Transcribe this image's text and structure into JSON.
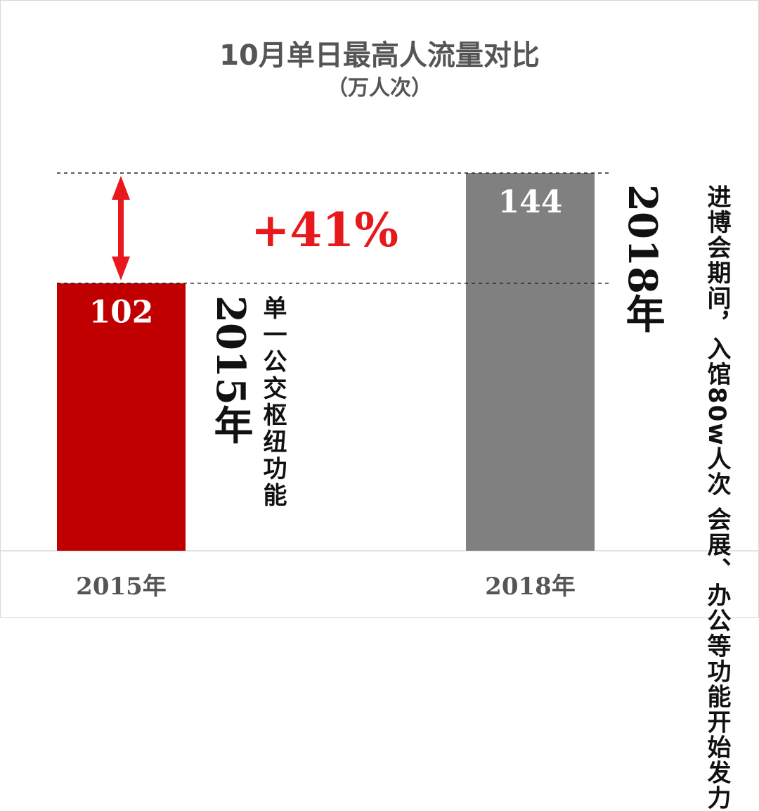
{
  "chart_data": {
    "type": "bar",
    "title": "10月单日最高人流量对比",
    "subtitle": "（万人次）",
    "categories": [
      "2015年",
      "2018年"
    ],
    "values": [
      102,
      144
    ],
    "value_labels": [
      "102",
      "144"
    ],
    "bar_colors": [
      "#c00000",
      "#808080"
    ],
    "ylim": [
      0,
      144
    ],
    "grid": false,
    "change_label": "+41%",
    "change_color": "#e8191c",
    "annotations": [
      {
        "year": "2015年",
        "text": "单一公交枢纽功能"
      },
      {
        "year": "2018年",
        "text": "进博会期间，入馆80w人次 会展、办公等功能开始发力"
      }
    ]
  }
}
